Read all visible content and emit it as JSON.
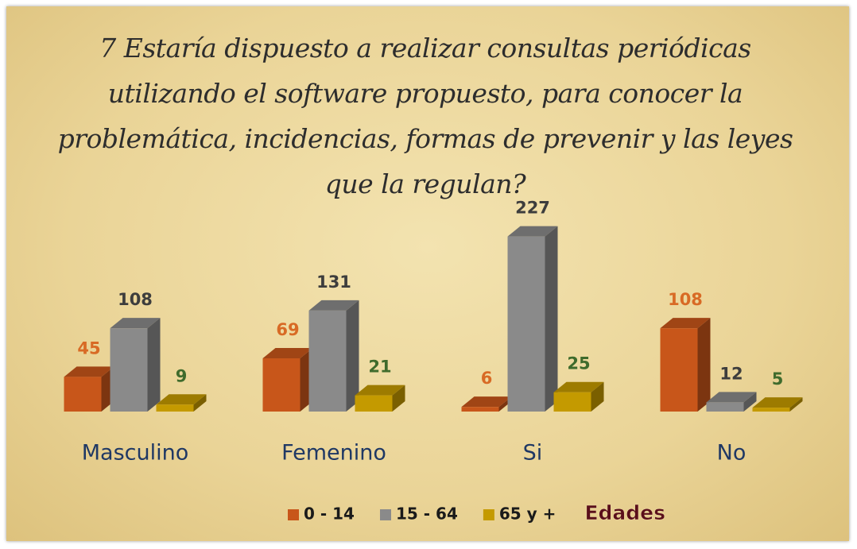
{
  "chart_data": {
    "type": "bar3d",
    "title": "7  Estaría dispuesto a realizar consultas periódicas utilizando el software propuesto, para conocer la problemática, incidencias, formas de prevenir y las leyes que la regulan?",
    "categories": [
      "Masculino",
      "Femenino",
      "Si",
      "No"
    ],
    "series": [
      {
        "name": "0 - 14",
        "color": "#c8561a",
        "label_color": "#d86a25",
        "values": [
          45,
          69,
          6,
          108
        ]
      },
      {
        "name": "15 - 64",
        "color": "#8a8a8a",
        "label_color": "#3d3d3d",
        "values": [
          108,
          131,
          227,
          12
        ]
      },
      {
        "name": "65 y +",
        "color": "#c49a00",
        "label_color": "#3f6b2c",
        "values": [
          9,
          21,
          25,
          5
        ]
      }
    ],
    "legend_title": "Edades",
    "ylim": [
      0,
      240
    ]
  }
}
